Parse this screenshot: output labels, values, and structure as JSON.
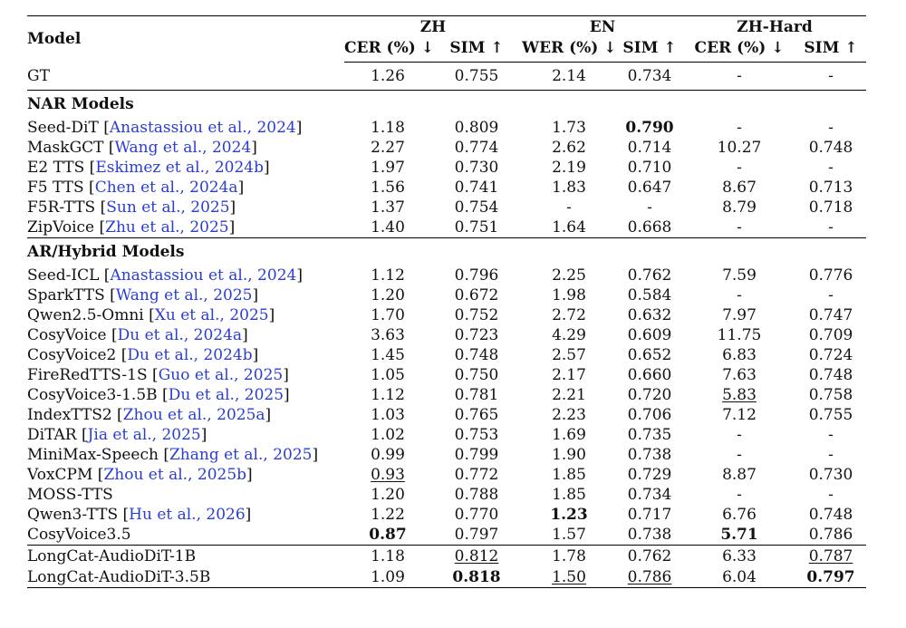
{
  "header": {
    "model_label": "Model",
    "groups": [
      "ZH",
      "EN",
      "ZH-Hard"
    ],
    "subheaders": [
      "CER (%) ↓",
      "SIM ↑",
      "WER (%) ↓",
      "SIM ↑",
      "CER (%) ↓",
      "SIM ↑"
    ]
  },
  "gt_row": {
    "name": "GT",
    "values": [
      "1.26",
      "0.755",
      "2.14",
      "0.734",
      "-",
      "-"
    ]
  },
  "sections": [
    {
      "title": "NAR Models",
      "rows": [
        {
          "name": "Seed-DiT",
          "cite": "Anastassiou et al., 2024",
          "values": [
            "1.18",
            "0.809",
            "1.73",
            "0.790",
            "-",
            "-"
          ],
          "bold": [
            3
          ],
          "underline": []
        },
        {
          "name": "MaskGCT",
          "cite": "Wang et al., 2024",
          "values": [
            "2.27",
            "0.774",
            "2.62",
            "0.714",
            "10.27",
            "0.748"
          ],
          "bold": [],
          "underline": []
        },
        {
          "name": "E2 TTS",
          "cite": "Eskimez et al., 2024b",
          "values": [
            "1.97",
            "0.730",
            "2.19",
            "0.710",
            "-",
            "-"
          ],
          "bold": [],
          "underline": []
        },
        {
          "name": "F5 TTS",
          "cite": "Chen et al., 2024a",
          "values": [
            "1.56",
            "0.741",
            "1.83",
            "0.647",
            "8.67",
            "0.713"
          ],
          "bold": [],
          "underline": []
        },
        {
          "name": "F5R-TTS",
          "cite": "Sun et al., 2025",
          "values": [
            "1.37",
            "0.754",
            "-",
            "-",
            "8.79",
            "0.718"
          ],
          "bold": [],
          "underline": []
        },
        {
          "name": "ZipVoice",
          "cite": "Zhu et al., 2025",
          "values": [
            "1.40",
            "0.751",
            "1.64",
            "0.668",
            "-",
            "-"
          ],
          "bold": [],
          "underline": []
        }
      ]
    },
    {
      "title": "AR/Hybrid Models",
      "rows": [
        {
          "name": "Seed-ICL",
          "cite": "Anastassiou et al., 2024",
          "values": [
            "1.12",
            "0.796",
            "2.25",
            "0.762",
            "7.59",
            "0.776"
          ],
          "bold": [],
          "underline": []
        },
        {
          "name": "SparkTTS",
          "cite": "Wang et al., 2025",
          "values": [
            "1.20",
            "0.672",
            "1.98",
            "0.584",
            "-",
            "-"
          ],
          "bold": [],
          "underline": []
        },
        {
          "name": "Qwen2.5-Omni",
          "cite": "Xu et al., 2025",
          "values": [
            "1.70",
            "0.752",
            "2.72",
            "0.632",
            "7.97",
            "0.747"
          ],
          "bold": [],
          "underline": []
        },
        {
          "name": "CosyVoice",
          "cite": "Du et al., 2024a",
          "values": [
            "3.63",
            "0.723",
            "4.29",
            "0.609",
            "11.75",
            "0.709"
          ],
          "bold": [],
          "underline": []
        },
        {
          "name": "CosyVoice2",
          "cite": "Du et al., 2024b",
          "values": [
            "1.45",
            "0.748",
            "2.57",
            "0.652",
            "6.83",
            "0.724"
          ],
          "bold": [],
          "underline": []
        },
        {
          "name": "FireRedTTS-1S",
          "cite": "Guo et al., 2025",
          "values": [
            "1.05",
            "0.750",
            "2.17",
            "0.660",
            "7.63",
            "0.748"
          ],
          "bold": [],
          "underline": []
        },
        {
          "name": "CosyVoice3-1.5B",
          "cite": "Du et al., 2025",
          "values": [
            "1.12",
            "0.781",
            "2.21",
            "0.720",
            "5.83",
            "0.758"
          ],
          "bold": [],
          "underline": [
            4
          ]
        },
        {
          "name": "IndexTTS2",
          "cite": "Zhou et al., 2025a",
          "values": [
            "1.03",
            "0.765",
            "2.23",
            "0.706",
            "7.12",
            "0.755"
          ],
          "bold": [],
          "underline": []
        },
        {
          "name": "DiTAR",
          "cite": "Jia et al., 2025",
          "values": [
            "1.02",
            "0.753",
            "1.69",
            "0.735",
            "-",
            "-"
          ],
          "bold": [],
          "underline": []
        },
        {
          "name": "MiniMax-Speech",
          "cite": "Zhang et al., 2025",
          "values": [
            "0.99",
            "0.799",
            "1.90",
            "0.738",
            "-",
            "-"
          ],
          "bold": [],
          "underline": []
        },
        {
          "name": "VoxCPM",
          "cite": "Zhou et al., 2025b",
          "values": [
            "0.93",
            "0.772",
            "1.85",
            "0.729",
            "8.87",
            "0.730"
          ],
          "bold": [],
          "underline": [
            0
          ]
        },
        {
          "name": "MOSS-TTS",
          "cite": "",
          "values": [
            "1.20",
            "0.788",
            "1.85",
            "0.734",
            "-",
            "-"
          ],
          "bold": [],
          "underline": []
        },
        {
          "name": "Qwen3-TTS",
          "cite": "Hu et al., 2026",
          "values": [
            "1.22",
            "0.770",
            "1.23",
            "0.717",
            "6.76",
            "0.748"
          ],
          "bold": [
            2
          ],
          "underline": []
        },
        {
          "name": "CosyVoice3.5",
          "cite": "",
          "values": [
            "0.87",
            "0.797",
            "1.57",
            "0.738",
            "5.71",
            "0.786"
          ],
          "bold": [
            0,
            4
          ],
          "underline": []
        }
      ]
    }
  ],
  "ours": [
    {
      "name": "LongCat-AudioDiT-1B",
      "cite": "",
      "values": [
        "1.18",
        "0.812",
        "1.78",
        "0.762",
        "6.33",
        "0.787"
      ],
      "bold": [],
      "underline": [
        1,
        5
      ]
    },
    {
      "name": "LongCat-AudioDiT-3.5B",
      "cite": "",
      "values": [
        "1.09",
        "0.818",
        "1.50",
        "0.786",
        "6.04",
        "0.797"
      ],
      "bold": [
        1,
        5
      ],
      "underline": [
        2,
        3
      ]
    }
  ]
}
